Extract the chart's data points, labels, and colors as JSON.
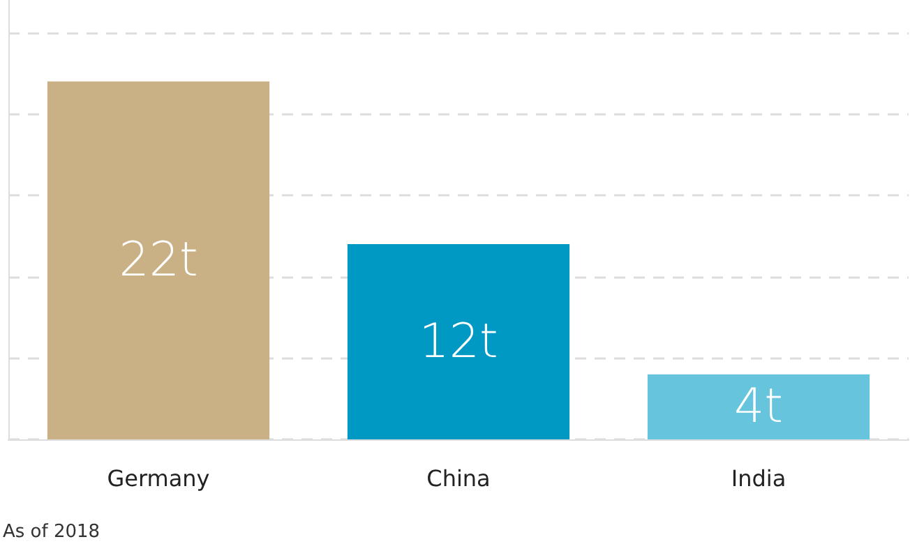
{
  "chart_data": {
    "type": "bar",
    "categories": [
      "Germany",
      "China",
      "India"
    ],
    "values": [
      22,
      12,
      4
    ],
    "colors": [
      "#c9b185",
      "#0099c4",
      "#66c4dc"
    ],
    "value_labels": [
      "22t",
      "12t",
      "4t"
    ],
    "ylim": [
      0,
      27
    ],
    "yticks": [
      {
        "value": 0,
        "label": null
      },
      {
        "value": 5,
        "label": null
      },
      {
        "value": 10,
        "label": null
      },
      {
        "value": 15,
        "label": null
      },
      {
        "value": 20,
        "label": null
      },
      {
        "value": 25,
        "label": null
      }
    ],
    "grid": "y",
    "tick_labels": "x",
    "annotations": [
      "As of 2018"
    ]
  }
}
